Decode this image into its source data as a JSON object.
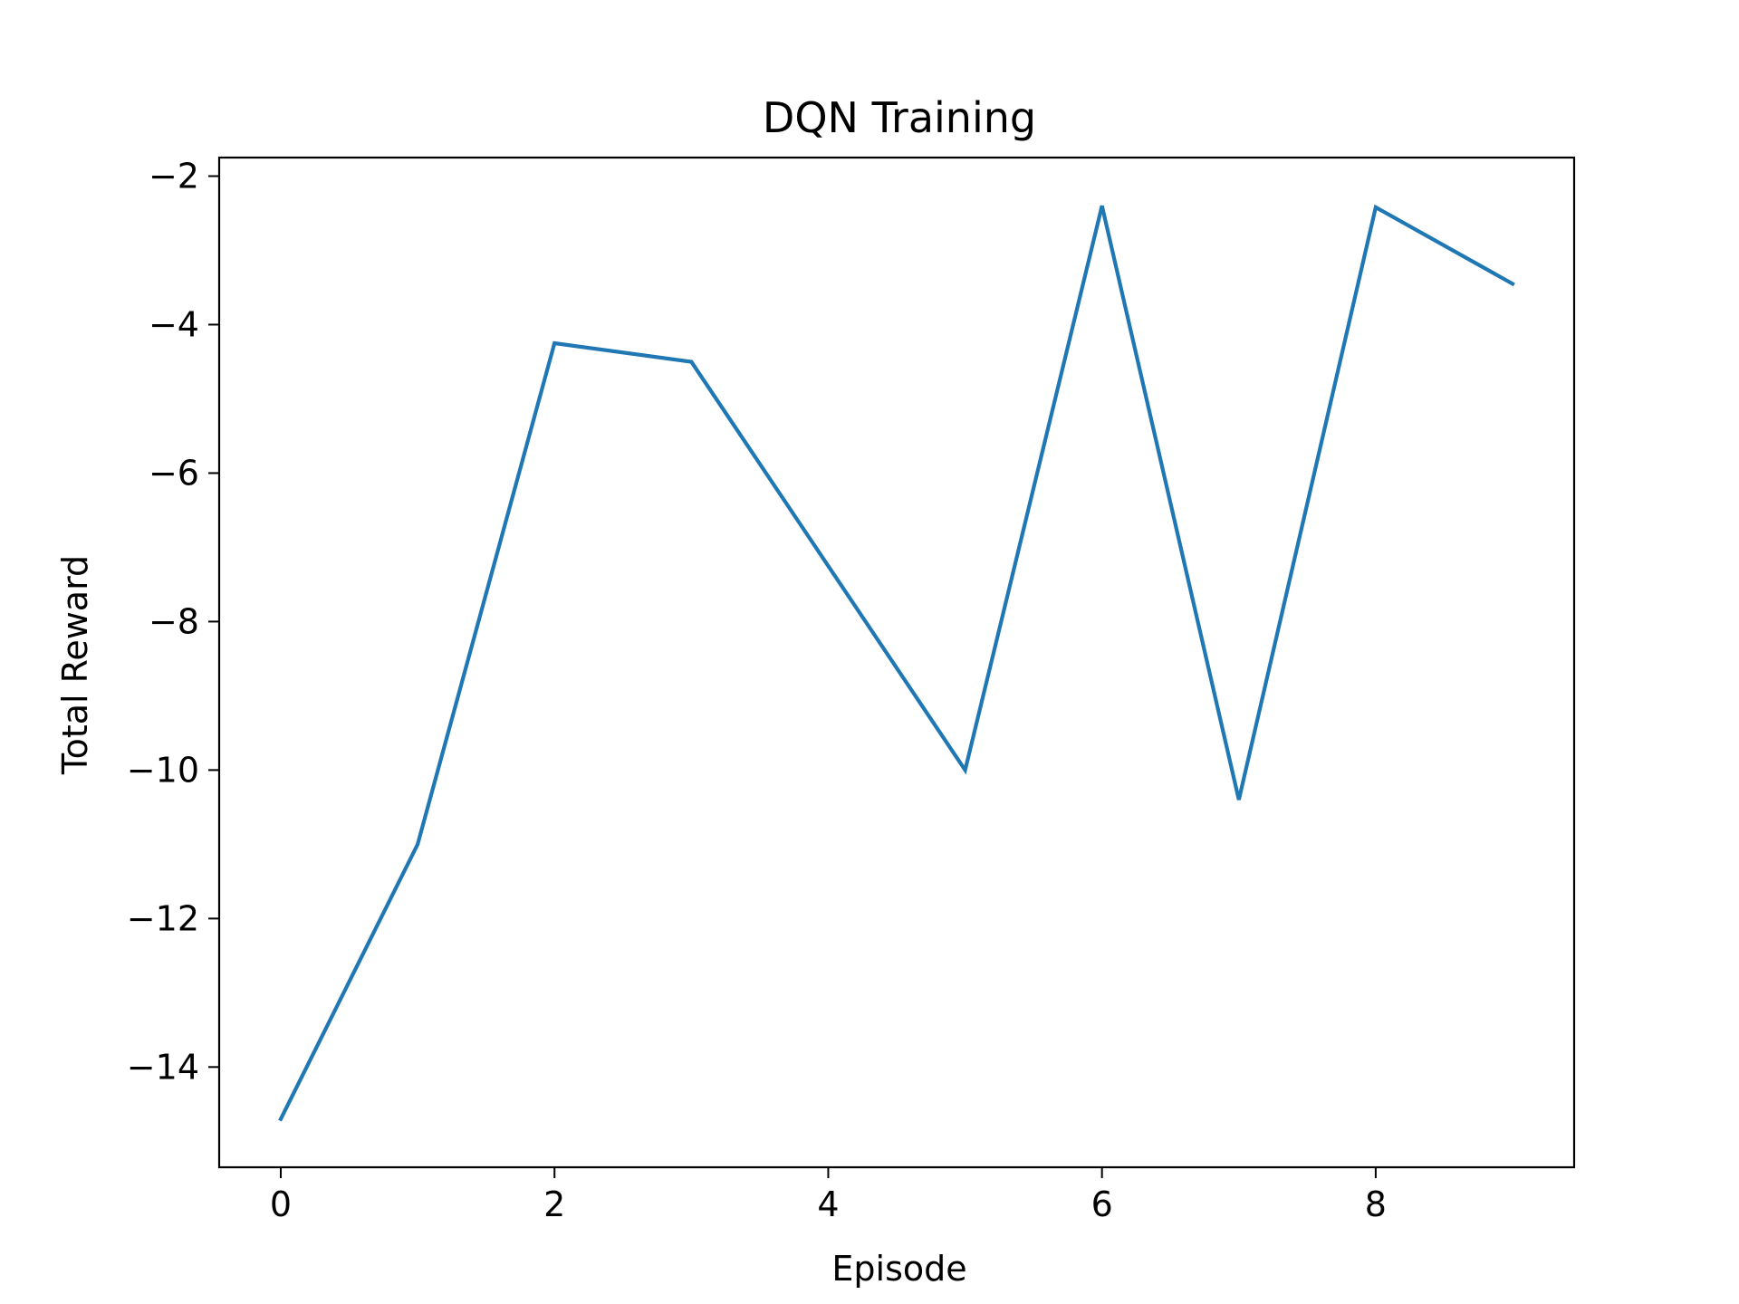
{
  "chart_data": {
    "type": "line",
    "title": "DQN Training",
    "xlabel": "Episode",
    "ylabel": "Total Reward",
    "xlim": [
      -0.45,
      9.45
    ],
    "ylim": [
      -15.35,
      -1.75
    ],
    "x_ticks": [
      0,
      2,
      4,
      6,
      8
    ],
    "x_tick_labels": [
      "0",
      "2",
      "4",
      "6",
      "8"
    ],
    "y_ticks": [
      -2,
      -4,
      -6,
      -8,
      -10,
      -12,
      -14
    ],
    "y_tick_labels": [
      "−2",
      "−4",
      "−6",
      "−8",
      "−10",
      "−12",
      "−14"
    ],
    "grid": false,
    "legend": "none",
    "series": [
      {
        "color": "#1f77b4",
        "x": [
          0,
          1,
          2,
          3,
          4,
          5,
          6,
          7,
          8,
          9
        ],
        "y": [
          -14.7,
          -11.0,
          -4.25,
          -4.5,
          -7.25,
          -10.0,
          -2.4,
          -10.4,
          -2.42,
          -3.45
        ]
      }
    ]
  }
}
